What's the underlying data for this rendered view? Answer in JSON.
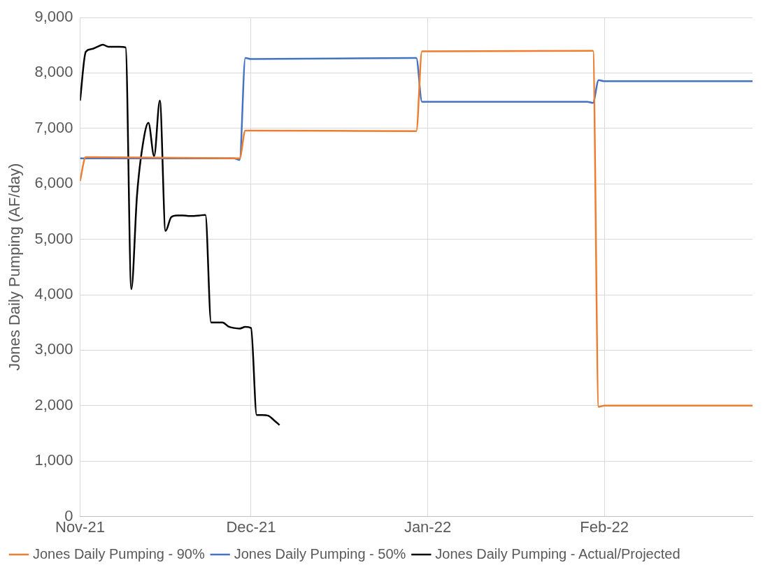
{
  "chart_data": {
    "type": "line",
    "ylabel": "Jones Daily Pumping (AF/day)",
    "xlim": [
      "2021-11-01",
      "2022-02-27"
    ],
    "xticks": [
      {
        "value": "2021-11-01",
        "label": "Nov-21"
      },
      {
        "value": "2021-12-01",
        "label": "Dec-21"
      },
      {
        "value": "2022-01-01",
        "label": "Jan-22"
      },
      {
        "value": "2022-02-01",
        "label": "Feb-22"
      }
    ],
    "ylim": [
      0,
      9000
    ],
    "yticks": [
      0,
      {
        "value": 1000,
        "label": "1,000"
      },
      {
        "value": 2000,
        "label": "2,000"
      },
      {
        "value": 3000,
        "label": "3,000"
      },
      {
        "value": 4000,
        "label": "4,000"
      },
      {
        "value": 5000,
        "label": "5,000"
      },
      {
        "value": 6000,
        "label": "6,000"
      },
      {
        "value": 7000,
        "label": "7,000"
      },
      {
        "value": 8000,
        "label": "8,000"
      },
      {
        "value": 9000,
        "label": "9,000"
      }
    ],
    "grid": true,
    "legend": "bottom",
    "marker": "none",
    "line_style": "solid",
    "series": [
      {
        "name": "Jones Daily Pumping - 90%",
        "color": "#ed7d31",
        "x": [
          "2021-11-01",
          "2021-11-02",
          "2021-11-29",
          "2021-11-30",
          "2021-12-30",
          "2021-12-31",
          "2022-01-30",
          "2022-01-31",
          "2022-02-01",
          "2022-02-27"
        ],
        "values": [
          6050,
          6480,
          6460,
          6960,
          6950,
          8390,
          8400,
          1980,
          2000,
          2000
        ]
      },
      {
        "name": "Jones Daily Pumping - 50%",
        "color": "#4472c4",
        "x": [
          "2021-11-01",
          "2021-11-28",
          "2021-11-29",
          "2021-11-30",
          "2021-12-01",
          "2021-12-30",
          "2021-12-31",
          "2022-01-29",
          "2022-01-30",
          "2022-01-31",
          "2022-02-01",
          "2022-02-27"
        ],
        "values": [
          6460,
          6460,
          6430,
          8270,
          8250,
          8270,
          7480,
          7480,
          7460,
          7870,
          7850,
          7850
        ]
      },
      {
        "name": "Jones Daily Pumping - Actual/Projected",
        "color": "#000000",
        "x": [
          "2021-11-01",
          "2021-11-02",
          "2021-11-03",
          "2021-11-04",
          "2021-11-05",
          "2021-11-06",
          "2021-11-07",
          "2021-11-08",
          "2021-11-09",
          "2021-11-10",
          "2021-11-11",
          "2021-11-12",
          "2021-11-13",
          "2021-11-14",
          "2021-11-15",
          "2021-11-16",
          "2021-11-17",
          "2021-11-18",
          "2021-11-19",
          "2021-11-20",
          "2021-11-21",
          "2021-11-22",
          "2021-11-23",
          "2021-11-24",
          "2021-11-25",
          "2021-11-26",
          "2021-11-27",
          "2021-11-28",
          "2021-11-29",
          "2021-11-30",
          "2021-12-01",
          "2021-12-02",
          "2021-12-03",
          "2021-12-04",
          "2021-12-05",
          "2021-12-06"
        ],
        "values": [
          7500,
          8380,
          8430,
          8470,
          8510,
          8470,
          8470,
          8470,
          8460,
          4100,
          5800,
          6700,
          7100,
          6500,
          7500,
          5150,
          5400,
          5430,
          5430,
          5420,
          5420,
          5430,
          5440,
          3500,
          3500,
          3500,
          3430,
          3400,
          3390,
          3420,
          3400,
          1830,
          1830,
          1820,
          1740,
          1650
        ]
      }
    ]
  }
}
